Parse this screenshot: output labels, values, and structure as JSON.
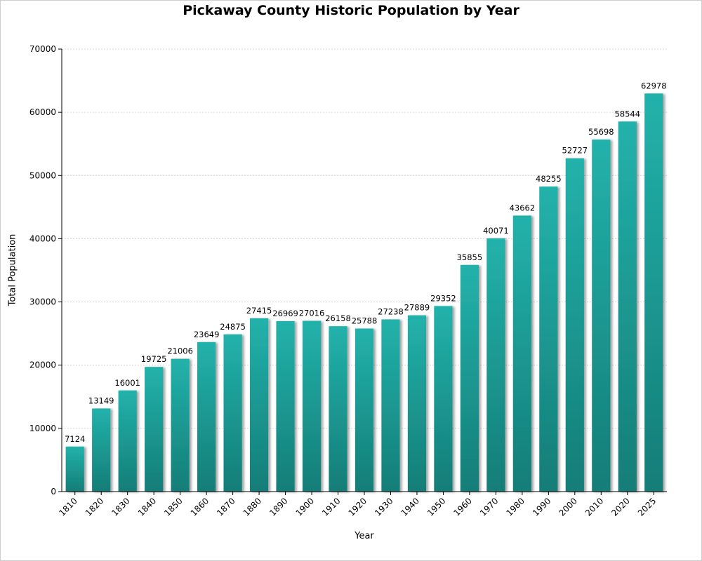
{
  "chart_data": {
    "type": "bar",
    "title": "Pickaway County Historic Population by Year",
    "xlabel": "Year",
    "ylabel": "Total Population",
    "categories": [
      "1810",
      "1820",
      "1830",
      "1840",
      "1850",
      "1860",
      "1870",
      "1880",
      "1890",
      "1900",
      "1910",
      "1920",
      "1930",
      "1940",
      "1950",
      "1960",
      "1970",
      "1980",
      "1990",
      "2000",
      "2010",
      "2020",
      "2025"
    ],
    "values": [
      7124,
      13149,
      16001,
      19725,
      21006,
      23649,
      24875,
      27415,
      26969,
      27016,
      26158,
      25788,
      27238,
      27889,
      29352,
      35855,
      40071,
      43662,
      48255,
      52727,
      55698,
      58544,
      62978
    ],
    "ylim": [
      0,
      70000
    ],
    "yticks": [
      0,
      10000,
      20000,
      30000,
      40000,
      50000,
      60000,
      70000
    ],
    "grid": true,
    "data_labels": true,
    "colors": {
      "bar_top": "#22b2ab",
      "bar_bottom": "#157d77",
      "grid": "#d6d6d6",
      "axis": "#000000"
    }
  }
}
